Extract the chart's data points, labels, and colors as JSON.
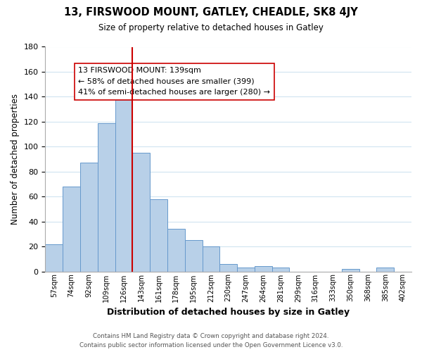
{
  "title": "13, FIRSWOOD MOUNT, GATLEY, CHEADLE, SK8 4JY",
  "subtitle": "Size of property relative to detached houses in Gatley",
  "xlabel": "Distribution of detached houses by size in Gatley",
  "ylabel": "Number of detached properties",
  "bin_labels": [
    "57sqm",
    "74sqm",
    "92sqm",
    "109sqm",
    "126sqm",
    "143sqm",
    "161sqm",
    "178sqm",
    "195sqm",
    "212sqm",
    "230sqm",
    "247sqm",
    "264sqm",
    "281sqm",
    "299sqm",
    "316sqm",
    "333sqm",
    "350sqm",
    "368sqm",
    "385sqm",
    "402sqm"
  ],
  "bar_heights": [
    22,
    68,
    87,
    119,
    140,
    95,
    58,
    34,
    25,
    20,
    6,
    3,
    4,
    3,
    0,
    0,
    0,
    2,
    0,
    3,
    0
  ],
  "bar_color": "#b8d0e8",
  "bar_edge_color": "#6699cc",
  "vline_x_index": 5,
  "vline_color": "#cc0000",
  "annotation_title": "13 FIRSWOOD MOUNT: 139sqm",
  "annotation_line1": "← 58% of detached houses are smaller (399)",
  "annotation_line2": "41% of semi-detached houses are larger (280) →",
  "annotation_box_color": "#ffffff",
  "annotation_box_edge": "#cc0000",
  "ylim": [
    0,
    180
  ],
  "yticks": [
    0,
    20,
    40,
    60,
    80,
    100,
    120,
    140,
    160,
    180
  ],
  "footer_line1": "Contains HM Land Registry data © Crown copyright and database right 2024.",
  "footer_line2": "Contains public sector information licensed under the Open Government Licence v3.0.",
  "bg_color": "#ffffff",
  "grid_color": "#d0e4f0"
}
